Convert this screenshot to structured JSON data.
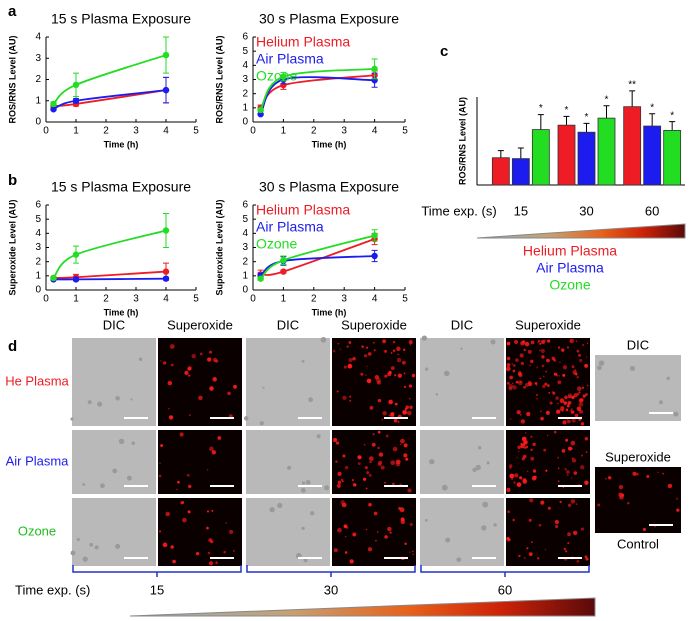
{
  "panel_labels": [
    "a",
    "b",
    "c",
    "d"
  ],
  "chart_data": [
    {
      "type": "line",
      "title": "15 s Plasma  Exposure",
      "x_label": "Time (h)",
      "y_label": "ROS/RNS Level (AU)",
      "x": [
        0.25,
        1,
        4
      ],
      "xlim": [
        0,
        5
      ],
      "xticks": [
        0,
        1,
        2,
        3,
        4,
        5
      ],
      "ylim": [
        0,
        4
      ],
      "yticks": [
        0,
        1,
        2,
        3,
        4
      ],
      "series": [
        {
          "color": "#ee1c24",
          "values": [
            0.75,
            0.85,
            1.5
          ],
          "errors": [
            0.1,
            0.1,
            0.6
          ]
        },
        {
          "color": "#1c1cee",
          "values": [
            0.6,
            1.0,
            1.5
          ],
          "errors": [
            0.05,
            0.1,
            0.6
          ]
        },
        {
          "color": "#22dd22",
          "values": [
            0.85,
            1.75,
            3.15
          ],
          "errors": [
            0.1,
            0.55,
            0.85
          ]
        }
      ]
    },
    {
      "type": "line",
      "title": "30 s Plasma Exposure",
      "x_label": "Time (h)",
      "y_label": "ROS/RNS Level (AU)",
      "x": [
        0.25,
        1,
        4
      ],
      "xlim": [
        0,
        5
      ],
      "xticks": [
        0,
        1,
        2,
        3,
        4,
        5
      ],
      "ylim": [
        0,
        6
      ],
      "yticks": [
        0,
        1,
        2,
        3,
        4,
        5,
        6
      ],
      "series": [
        {
          "name": "Helium Plasma",
          "color": "#ee1c24",
          "values": [
            1.0,
            2.6,
            3.3
          ],
          "errors": [
            0.2,
            0.3,
            0.3
          ]
        },
        {
          "name": "Air Plasma",
          "color": "#1c1cee",
          "values": [
            0.55,
            3.0,
            2.95
          ],
          "errors": [
            0.05,
            0.3,
            0.5
          ]
        },
        {
          "name": "Ozone",
          "color": "#22dd22",
          "values": [
            0.85,
            3.2,
            3.75
          ],
          "errors": [
            0.1,
            0.3,
            0.7
          ]
        }
      ]
    },
    {
      "type": "line",
      "title": "15 s Plasma   Exposure",
      "x_label": "Time (h)",
      "y_label": "Superoxide Level (AU)",
      "x": [
        0.25,
        1,
        4
      ],
      "xlim": [
        0,
        5
      ],
      "xticks": [
        0,
        1,
        2,
        3,
        4,
        5
      ],
      "ylim": [
        0,
        6
      ],
      "yticks": [
        0,
        1,
        2,
        3,
        4,
        5,
        6
      ],
      "series": [
        {
          "color": "#ee1c24",
          "values": [
            0.85,
            0.9,
            1.3
          ],
          "errors": [
            0.1,
            0.2,
            0.6
          ]
        },
        {
          "color": "#1c1cee",
          "values": [
            0.75,
            0.75,
            0.8
          ],
          "errors": [
            0.05,
            0.1,
            0.1
          ]
        },
        {
          "color": "#22dd22",
          "values": [
            0.85,
            2.5,
            4.2
          ],
          "errors": [
            0.1,
            0.6,
            1.2
          ]
        }
      ]
    },
    {
      "type": "line",
      "title": "30 s Plasma Exposure",
      "x_label": "Time (h)",
      "y_label": "Superoxide Level (AU)",
      "x": [
        0.25,
        1,
        4
      ],
      "xlim": [
        0,
        5
      ],
      "xticks": [
        0,
        1,
        2,
        3,
        4,
        5
      ],
      "ylim": [
        0,
        6
      ],
      "yticks": [
        0,
        1,
        2,
        3,
        4,
        5,
        6
      ],
      "series": [
        {
          "name": "Helium Plasma",
          "color": "#ee1c24",
          "values": [
            1.1,
            1.3,
            3.6
          ],
          "errors": [
            0.3,
            0.1,
            0.4
          ]
        },
        {
          "name": "Air Plasma",
          "color": "#1c1cee",
          "values": [
            1.0,
            2.05,
            2.4
          ],
          "errors": [
            0.2,
            0.3,
            0.4
          ]
        },
        {
          "name": "Ozone",
          "color": "#22dd22",
          "values": [
            0.8,
            2.1,
            3.85
          ],
          "errors": [
            0.1,
            0.3,
            0.4
          ]
        }
      ]
    },
    {
      "type": "bar",
      "x_label": "Time exp. (s)",
      "y_label": "ROS/RNS Level (AU)",
      "categories": [
        "15",
        "30",
        "60"
      ],
      "ylim": [
        0,
        5
      ],
      "series": [
        {
          "name": "Helium Plasma",
          "color": "#ee1c24",
          "values": [
            1.55,
            3.4,
            4.45
          ],
          "errors": [
            0.4,
            0.5,
            0.9
          ],
          "significance": [
            null,
            "*",
            "**"
          ]
        },
        {
          "name": "Air Plasma",
          "color": "#1c1cee",
          "values": [
            1.5,
            3.0,
            3.35
          ],
          "errors": [
            0.6,
            0.5,
            0.7
          ],
          "significance": [
            null,
            "*",
            "*"
          ]
        },
        {
          "name": "Ozone",
          "color": "#22dd22",
          "values": [
            3.15,
            3.8,
            3.1
          ],
          "errors": [
            0.85,
            0.7,
            0.5
          ],
          "significance": [
            "*",
            "*",
            "*"
          ]
        }
      ]
    }
  ],
  "microscopy": {
    "column_headers": [
      "DIC",
      "Superoxide",
      "DIC",
      "Superoxide",
      "DIC",
      "Superoxide"
    ],
    "row_labels": [
      "He Plasma",
      "Air Plasma",
      "Ozone"
    ],
    "row_colors": [
      "#ee1c24",
      "#1c1cee",
      "#22bb22"
    ],
    "control": {
      "headers": [
        "DIC",
        "Superoxide"
      ],
      "label": "Control"
    },
    "time_label": "Time exp. (s)",
    "times": [
      "15",
      "30",
      "60"
    ]
  }
}
